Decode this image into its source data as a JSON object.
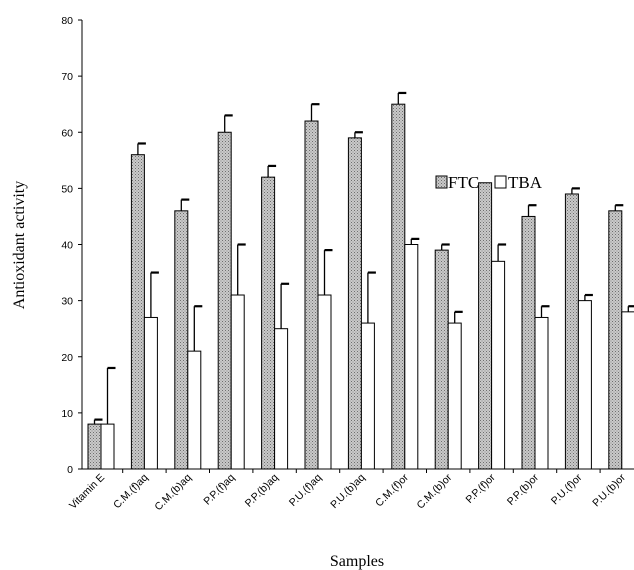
{
  "chart_data": {
    "type": "bar",
    "title": "",
    "xlabel": "Samples",
    "ylabel": "Antioxidant activity",
    "ylim": [
      0,
      80
    ],
    "yticks": [
      0,
      10,
      20,
      30,
      40,
      50,
      60,
      70,
      80
    ],
    "grid": false,
    "legend_position": "top-right",
    "categories": [
      "Vitamin E",
      "C.M.(f)aq",
      "C.M.(b)aq",
      "P.P.(f)aq",
      "P.P.(b)aq",
      "P.U.(f)aq",
      "P.U.(b)aq",
      "C.M.(f)or",
      "C.M.(b)or",
      "P.P.(f)or",
      "P.P.(b)or",
      "P.U.(f)or",
      "P.U.(b)or"
    ],
    "series": [
      {
        "name": "FTC",
        "pattern": "dotted-gray",
        "values": [
          8,
          56,
          46,
          60,
          52,
          62,
          59,
          65,
          39,
          51,
          45,
          49,
          46
        ],
        "error": [
          0.8,
          2,
          2,
          3,
          2,
          3,
          1,
          2,
          1,
          0,
          2,
          1,
          1
        ]
      },
      {
        "name": "TBA",
        "pattern": "white",
        "values": [
          8,
          27,
          21,
          31,
          25,
          31,
          26,
          40,
          26,
          37,
          27,
          30,
          28
        ],
        "error": [
          10,
          8,
          8,
          9,
          8,
          8,
          9,
          1,
          2,
          3,
          2,
          1,
          1
        ]
      }
    ]
  }
}
